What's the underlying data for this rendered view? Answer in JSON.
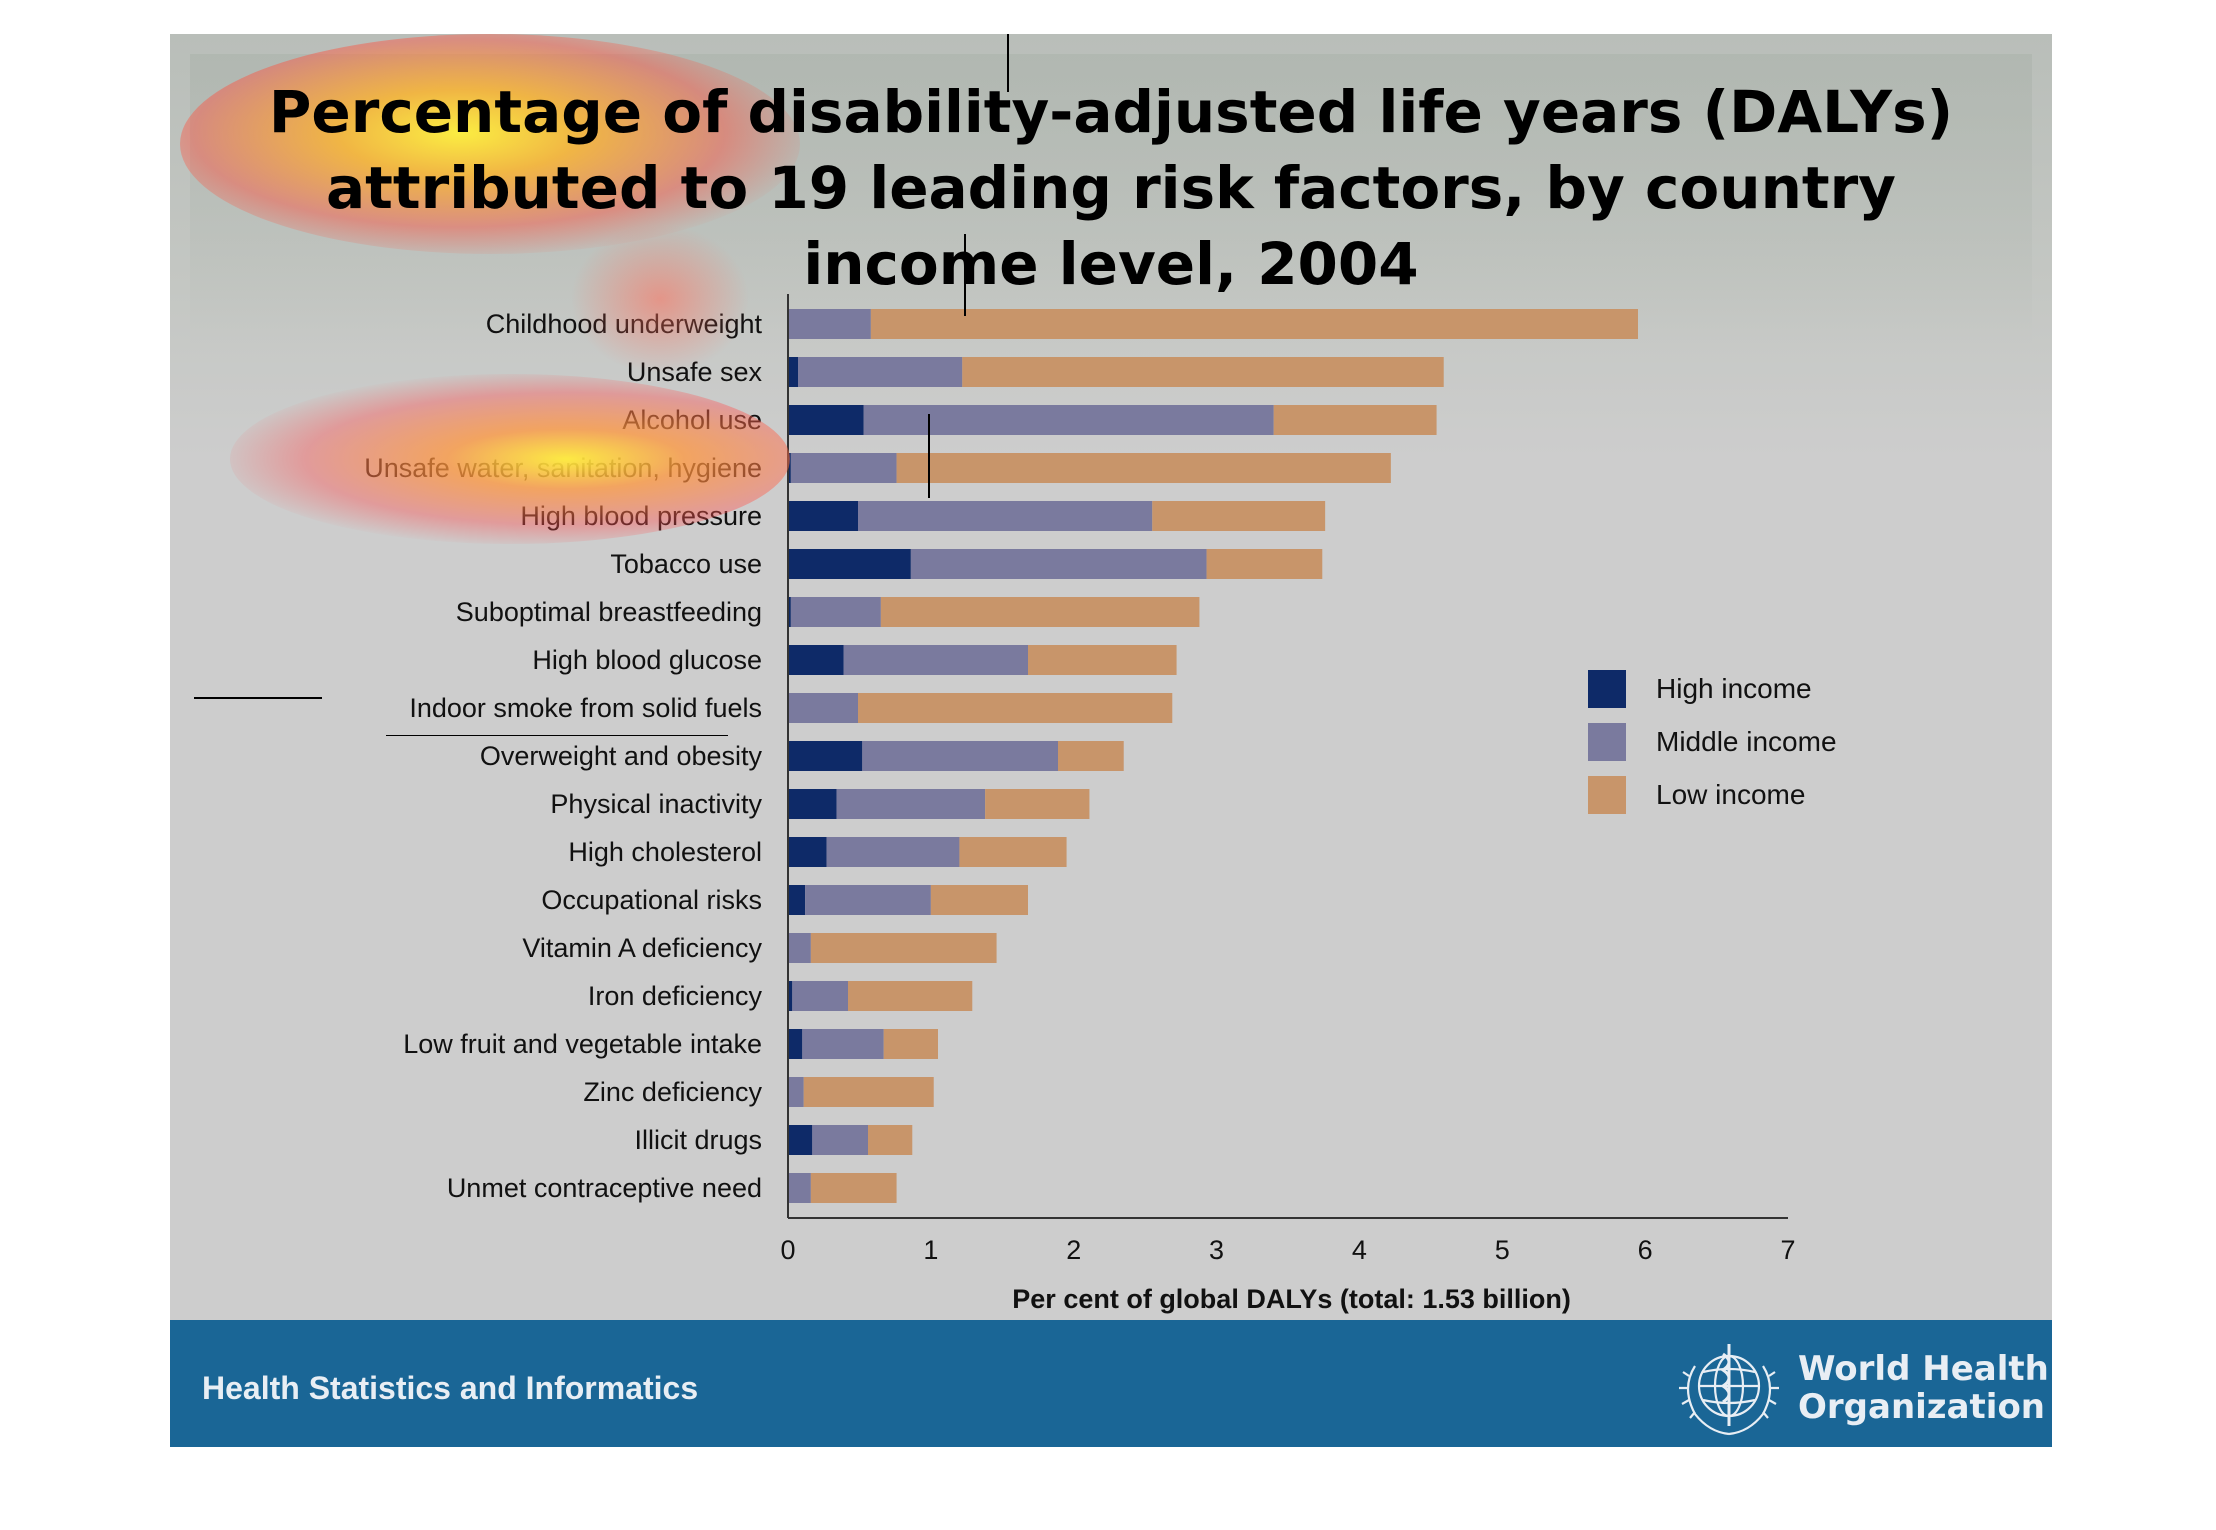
{
  "slide": {
    "title_lines": [
      "Percentage of disability-adjusted life years (DALYs)",
      "attributed to 19 leading risk factors, by country",
      "income level, 2004"
    ],
    "footer_text": "Health Statistics and Informatics",
    "organization_lines": [
      "World Health",
      "Organization"
    ]
  },
  "colors": {
    "high_income": "#0e2a68",
    "middle_income": "#7a7a9e",
    "low_income": "#c8956a",
    "footer": "#1a6696"
  },
  "chart_data": {
    "type": "bar",
    "orientation": "horizontal",
    "stacked": true,
    "title": "Percentage of disability-adjusted life years (DALYs) attributed to 19 leading risk factors, by country income level, 2004",
    "xlabel": "Per cent of global DALYs (total: 1.53 billion)",
    "ylabel": "",
    "xlim": [
      0,
      7
    ],
    "xticks": [
      "0",
      "1",
      "2",
      "3",
      "4",
      "5",
      "6",
      "7"
    ],
    "legend_position": "right",
    "categories": [
      "Childhood underweight",
      "Unsafe sex",
      "Alcohol use",
      "Unsafe water, sanitation, hygiene",
      "High blood pressure",
      "Tobacco use",
      "Suboptimal breastfeeding",
      "High blood glucose",
      "Indoor smoke from solid fuels",
      "Overweight and obesity",
      "Physical inactivity",
      "High cholesterol",
      "Occupational risks",
      "Vitamin A deficiency",
      "Iron deficiency",
      "Low fruit and vegetable intake",
      "Zinc deficiency",
      "Illicit drugs",
      "Unmet contraceptive need"
    ],
    "series": [
      {
        "name": "High income",
        "values": [
          0.0,
          0.07,
          0.53,
          0.02,
          0.49,
          0.86,
          0.02,
          0.39,
          0.0,
          0.52,
          0.34,
          0.27,
          0.12,
          0.0,
          0.03,
          0.1,
          0.0,
          0.17,
          0.0
        ]
      },
      {
        "name": "Middle income",
        "values": [
          0.58,
          1.15,
          2.87,
          0.74,
          2.06,
          2.07,
          0.63,
          1.29,
          0.49,
          1.37,
          1.04,
          0.93,
          0.88,
          0.16,
          0.39,
          0.57,
          0.11,
          0.39,
          0.16
        ]
      },
      {
        "name": "Low income",
        "values": [
          5.37,
          3.37,
          1.14,
          3.46,
          1.21,
          0.81,
          2.23,
          1.04,
          2.2,
          0.46,
          0.73,
          0.75,
          0.68,
          1.3,
          0.87,
          0.38,
          0.91,
          0.31,
          0.6
        ]
      }
    ]
  }
}
